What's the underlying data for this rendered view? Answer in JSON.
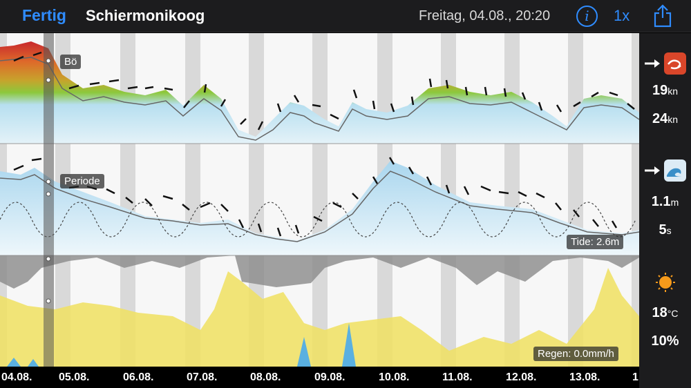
{
  "header": {
    "done_label": "Fertig",
    "location": "Schiermonikoog",
    "datetime": "Freitag, 04.08., 20:20",
    "info_label": "i",
    "speed_label": "1x"
  },
  "chart_labels": {
    "gust": "Bö",
    "period": "Periode",
    "tide": "Tide: 2.6m",
    "rain": "Regen: 0.0mm/h"
  },
  "sidebar": {
    "wind_speed": "19",
    "wind_gust": "24",
    "wind_unit": "kn",
    "wave_height": "1.1",
    "wave_unit": "m",
    "wave_period": "5",
    "period_unit": "s",
    "temperature": "18",
    "temp_unit": "°C",
    "cloud_cover": "10%"
  },
  "dates": [
    "04.08.",
    "05.08.",
    "06.08.",
    "07.08.",
    "08.08.",
    "09.08.",
    "10.08.",
    "11.08.",
    "12.08.",
    "13.08.",
    "1"
  ],
  "colors": {
    "accent": "#2f8cff",
    "wind_low": "#b7dff0",
    "wind_mid": "#8cc83c",
    "wind_high": "#c8282d",
    "wave": "#b9dff1",
    "cloud": "#9a9a9a",
    "sun": "#f0e060",
    "rain": "#5ab0e0"
  }
}
